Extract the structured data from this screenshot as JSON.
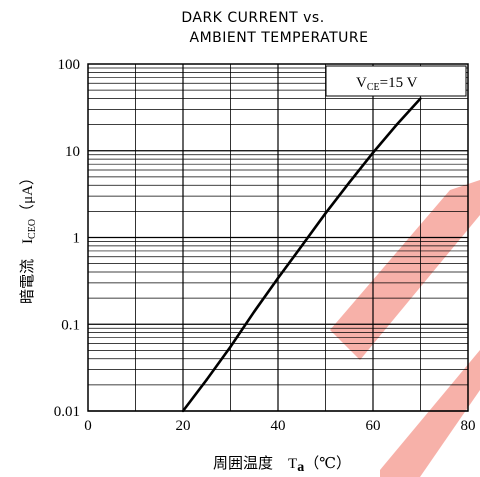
{
  "colors": {
    "line": "#000000",
    "grid": "#000000",
    "watermark": "#f6a8a0"
  },
  "chart_data": {
    "type": "line",
    "title_line1": "DARK  CURRENT vs.",
    "title_line2": "AMBIENT  TEMPERATURE",
    "xlabel": "周囲温度　T",
    "xlabel_sub": "a",
    "xlabel_unit": "（℃）",
    "ylabel": "暗電流　I",
    "ylabel_sub": "CEO",
    "ylabel_unit": "（μA）",
    "legend_text": "V",
    "legend_sub": "CE",
    "legend_value": "=15  V",
    "legend_position": "top-right",
    "xlim": [
      0,
      80
    ],
    "ylim": [
      0.01,
      100
    ],
    "yscale": "log",
    "grid": true,
    "xticks": [
      0,
      20,
      40,
      60,
      80
    ],
    "xtick_labels": [
      "0",
      "20",
      "40",
      "60",
      "80"
    ],
    "yticks": [
      0.01,
      0.1,
      1,
      10,
      100
    ],
    "ytick_labels": [
      "0.01",
      "0.1",
      "1",
      "10",
      "100"
    ],
    "series": [
      {
        "x": [
          20,
          25,
          30,
          35,
          40,
          45,
          50,
          55,
          60,
          65,
          70
        ],
        "y": [
          0.01,
          0.023,
          0.055,
          0.14,
          0.34,
          0.8,
          1.9,
          4.3,
          9.5,
          20,
          40
        ]
      }
    ]
  }
}
